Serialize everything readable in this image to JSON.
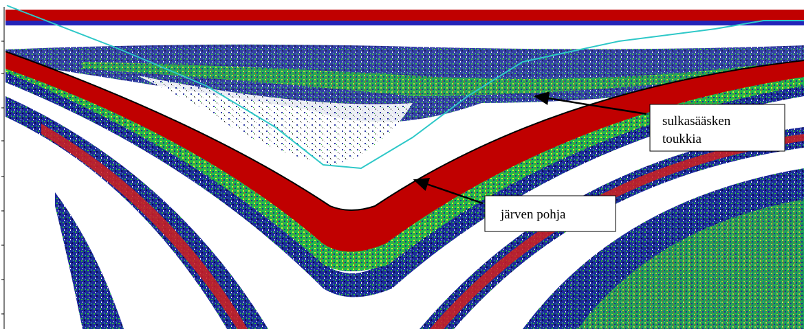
{
  "annotations": [
    {
      "lines": [
        "sulkasääsken",
        "toukkia"
      ]
    },
    {
      "text": "järven pohja"
    }
  ]
}
